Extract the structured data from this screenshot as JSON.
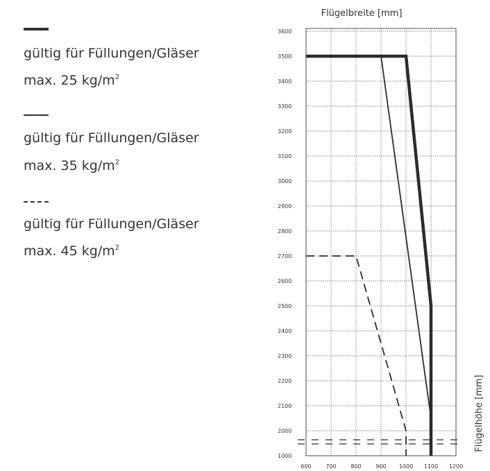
{
  "legend": [
    {
      "line1": "gültig für Füllungen/Gläser",
      "line2_prefix": "max. 25 kg/m",
      "sup": "2",
      "style": "thick"
    },
    {
      "line1": "gültig für Füllungen/Gläser",
      "line2_prefix": "max. 35 kg/m",
      "sup": "2",
      "style": "thin"
    },
    {
      "line1": "gültig für Füllungen/Gläser",
      "line2_prefix": "max. 45 kg/m",
      "sup": "2",
      "style": "dashed"
    }
  ],
  "colors": {
    "line": "#2b2b2b",
    "grid": "#555555",
    "background": "#ffffff"
  },
  "chart_data": {
    "type": "line",
    "title": "",
    "xlabel": "Flügelbreite [mm]",
    "ylabel": "Flügelhöhe [mm]",
    "xlabel_position": "top",
    "ylabel_position": "right-vertical",
    "xlim": [
      600,
      1200
    ],
    "ylim": [
      1000,
      3600
    ],
    "x_ticks": [
      "600",
      "700",
      "800",
      "900",
      "1000",
      "1100",
      "1200"
    ],
    "y_ticks": [
      "1000",
      "2000",
      "2100",
      "2200",
      "2300",
      "2400",
      "2500",
      "2600",
      "2700",
      "2800",
      "2900",
      "3000",
      "3100",
      "3200",
      "3300",
      "3400",
      "3500",
      "3600"
    ],
    "axis_break": "between 1000 and 2000 (double dashed line)",
    "grid": "dotted",
    "series": [
      {
        "style": "thick",
        "points": [
          [
            600,
            3500
          ],
          [
            1000,
            3500
          ],
          [
            1100,
            2500
          ],
          [
            1100,
            1000
          ]
        ]
      },
      {
        "style": "thin",
        "points": [
          [
            600,
            3500
          ],
          [
            900,
            3500
          ],
          [
            1100,
            2050
          ],
          [
            1100,
            1000
          ]
        ]
      },
      {
        "style": "dashed",
        "points": [
          [
            600,
            2700
          ],
          [
            800,
            2700
          ],
          [
            1000,
            2000
          ],
          [
            1000,
            1000
          ]
        ]
      }
    ]
  }
}
